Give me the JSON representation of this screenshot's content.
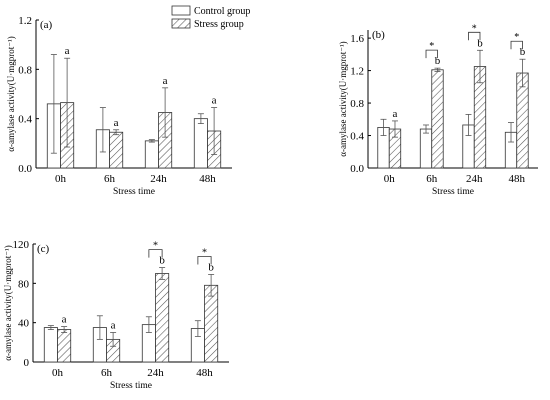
{
  "legend": {
    "control": "Control group",
    "stress": "Stress group"
  },
  "chart_data": [
    {
      "type": "bar",
      "panel_label": "(a)",
      "categories": [
        "0h",
        "6h",
        "24h",
        "48h"
      ],
      "xlabel": "Stress time",
      "ylabel": "α-amylase activity(U·mgprot⁻¹)",
      "ylim": [
        0,
        1.2
      ],
      "yticks": [
        "0.0",
        "0.4",
        "0.8",
        "1.2"
      ],
      "series": [
        {
          "name": "Control group",
          "values": [
            0.52,
            0.31,
            0.22,
            0.4
          ],
          "errors": [
            0.4,
            0.18,
            0.01,
            0.04
          ]
        },
        {
          "name": "Stress group",
          "values": [
            0.53,
            0.29,
            0.45,
            0.3
          ],
          "errors": [
            0.36,
            0.02,
            0.2,
            0.19
          ]
        }
      ],
      "letters": [
        "a",
        "a",
        "a",
        "a"
      ],
      "significance": [
        false,
        false,
        false,
        false
      ]
    },
    {
      "type": "bar",
      "panel_label": "(b)",
      "categories": [
        "0h",
        "6h",
        "24h",
        "48h"
      ],
      "xlabel": "Stress time",
      "ylabel": "α-amylase activity(U·mgprot⁻¹)",
      "ylim": [
        0,
        1.7
      ],
      "yticks": [
        "0.0",
        "0.4",
        "0.8",
        "1.2",
        "1.6"
      ],
      "series": [
        {
          "name": "Control group",
          "values": [
            0.5,
            0.48,
            0.53,
            0.44
          ],
          "errors": [
            0.1,
            0.05,
            0.13,
            0.12
          ]
        },
        {
          "name": "Stress group",
          "values": [
            0.48,
            1.21,
            1.25,
            1.17
          ],
          "errors": [
            0.1,
            0.02,
            0.2,
            0.17
          ]
        }
      ],
      "letters": [
        "a",
        "b",
        "b",
        "b"
      ],
      "significance": [
        false,
        true,
        true,
        true
      ]
    },
    {
      "type": "bar",
      "panel_label": "(c)",
      "categories": [
        "0h",
        "6h",
        "24h",
        "48h"
      ],
      "xlabel": "Stress time",
      "ylabel": "α-amylase activity(U·mgprot⁻¹)",
      "ylim": [
        0,
        120
      ],
      "yticks": [
        "0",
        "40",
        "80",
        "120"
      ],
      "series": [
        {
          "name": "Control group",
          "values": [
            35,
            35,
            38,
            34
          ],
          "errors": [
            2,
            12,
            8,
            8
          ]
        },
        {
          "name": "Stress group",
          "values": [
            33,
            23,
            90,
            78
          ],
          "errors": [
            3,
            7,
            6,
            11
          ]
        }
      ],
      "letters": [
        "a",
        "a",
        "b",
        "b"
      ],
      "significance": [
        false,
        false,
        true,
        true
      ]
    }
  ],
  "significance_mark": "*"
}
